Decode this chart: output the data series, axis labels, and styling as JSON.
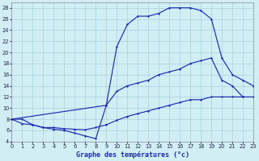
{
  "title": "Graphe des températures (°c)",
  "bg_color": "#d2eef5",
  "line_color": "#1a2db0",
  "grid_color": "#aacfdf",
  "xlim": [
    0,
    23
  ],
  "ylim": [
    4,
    29
  ],
  "xtick_labels": [
    "0",
    "1",
    "2",
    "3",
    "4",
    "5",
    "6",
    "7",
    "8",
    "9",
    "10",
    "11",
    "12",
    "13",
    "14",
    "15",
    "16",
    "17",
    "18",
    "19",
    "20",
    "21",
    "22",
    "23"
  ],
  "ytick_labels": [
    "4",
    "6",
    "8",
    "10",
    "12",
    "14",
    "16",
    "18",
    "20",
    "22",
    "24",
    "26",
    "28"
  ],
  "ytick_vals": [
    4,
    6,
    8,
    10,
    12,
    14,
    16,
    18,
    20,
    22,
    24,
    26,
    28
  ],
  "s1_x": [
    0,
    1,
    2,
    3,
    4,
    5,
    6,
    7,
    8,
    9,
    10,
    11,
    12,
    13,
    14,
    15,
    16,
    17,
    18,
    19,
    20,
    21,
    22,
    23
  ],
  "s1_y": [
    8.0,
    7.2,
    7.0,
    6.5,
    6.5,
    6.3,
    6.2,
    6.1,
    6.5,
    7.0,
    7.8,
    8.5,
    9.0,
    9.5,
    10.0,
    10.5,
    11.0,
    11.5,
    11.5,
    12.0,
    12.0,
    12.0,
    12.0,
    12.0
  ],
  "s2_x": [
    0,
    1,
    2,
    3,
    4,
    5,
    6,
    7,
    8,
    9,
    10,
    11,
    12,
    13,
    14,
    15,
    16,
    17,
    18,
    19,
    20,
    21,
    22
  ],
  "s2_y": [
    8.0,
    8.0,
    7.0,
    6.5,
    6.2,
    6.0,
    5.5,
    5.0,
    4.5,
    10.5,
    13.0,
    14.0,
    14.5,
    15.0,
    16.0,
    16.5,
    17.0,
    18.0,
    18.5,
    19.0,
    15.0,
    14.0,
    12.0
  ],
  "s3_x": [
    0,
    9,
    10,
    11,
    12,
    13,
    14,
    15,
    16,
    17,
    18,
    19,
    20,
    21,
    22,
    23
  ],
  "s3_y": [
    8.0,
    10.5,
    21.0,
    25.0,
    26.5,
    26.5,
    27.0,
    28.0,
    28.0,
    28.0,
    27.5,
    26.0,
    19.0,
    16.0,
    15.0,
    14.0
  ]
}
